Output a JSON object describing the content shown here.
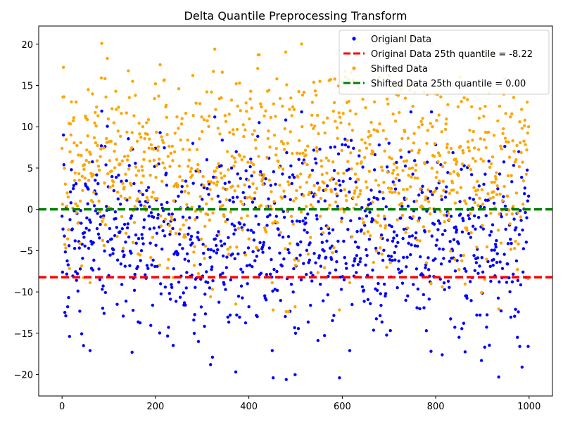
{
  "chart_data": {
    "type": "scatter",
    "title": "Delta Quantile Preprocessing Transform",
    "xlabel": "",
    "ylabel": "",
    "xlim": [
      -50,
      1050
    ],
    "ylim": [
      -22.6,
      22.2
    ],
    "x_ticks": [
      0,
      200,
      400,
      600,
      800,
      1000
    ],
    "y_ticks": [
      -20,
      -15,
      -10,
      -5,
      0,
      5,
      10,
      15,
      20
    ],
    "grid": false,
    "legend_position": "top-right",
    "n_points": 1000,
    "series": [
      {
        "name": "Origianl Data",
        "kind": "points",
        "color": "#0000ff",
        "marker": "dot",
        "sample_points": [
          [
            1,
            -7.6
          ],
          [
            3,
            9.0
          ],
          [
            4,
            5.4
          ],
          [
            8,
            -12.9
          ],
          [
            12,
            -11.8
          ],
          [
            15,
            -4.4
          ],
          [
            20,
            4.8
          ],
          [
            31,
            -8.6
          ],
          [
            36,
            -3.9
          ],
          [
            46,
            -16.5
          ],
          [
            60,
            -17.1
          ],
          [
            85,
            11.9
          ],
          [
            90,
            -12.6
          ],
          [
            118,
            -11.5
          ],
          [
            150,
            -17.3
          ],
          [
            200,
            7.4
          ],
          [
            242,
            1.0
          ],
          [
            292,
            -16.0
          ],
          [
            318,
            -18.8
          ],
          [
            322,
            -17.9
          ],
          [
            400,
            -11.8
          ],
          [
            422,
            10.5
          ],
          [
            450,
            -17.1
          ],
          [
            480,
            -20.6
          ],
          [
            500,
            -15.0
          ],
          [
            616,
            -17.1
          ],
          [
            700,
            8.0
          ],
          [
            755,
            5.9
          ],
          [
            780,
            -14.7
          ],
          [
            790,
            -17.2
          ],
          [
            860,
            -13.8
          ],
          [
            898,
            -18.3
          ],
          [
            905,
            -16.7
          ],
          [
            935,
            -20.3
          ],
          [
            940,
            -12.3
          ],
          [
            975,
            -15.5
          ],
          [
            980,
            -16.6
          ],
          [
            985,
            -19.1
          ],
          [
            998,
            -16.6
          ],
          [
            1000,
            1.6
          ]
        ]
      },
      {
        "name": "Original Data 25th quantile = -8.22",
        "kind": "hline",
        "y": -8.22,
        "color": "#ff0000",
        "style": "dashed"
      },
      {
        "name": "Shifted Data",
        "kind": "points",
        "color": "#ffa500",
        "marker": "dot",
        "sample_points": [
          [
            2,
            13.6
          ],
          [
            3,
            17.2
          ],
          [
            15,
            10.4
          ],
          [
            30,
            13.0
          ],
          [
            56,
            14.5
          ],
          [
            85,
            20.1
          ],
          [
            115,
            14.3
          ],
          [
            150,
            9.3
          ],
          [
            200,
            15.2
          ],
          [
            218,
            15.6
          ],
          [
            250,
            14.6
          ],
          [
            320,
            14.2
          ],
          [
            324,
            16.7
          ],
          [
            380,
            15.3
          ],
          [
            420,
            18.7
          ],
          [
            440,
            14.3
          ],
          [
            460,
            15.8
          ],
          [
            485,
            -12.4
          ],
          [
            535,
            11.4
          ],
          [
            572,
            15.6
          ],
          [
            600,
            15.4
          ],
          [
            650,
            12.3
          ],
          [
            720,
            13.8
          ],
          [
            745,
            14.4
          ],
          [
            775,
            14.2
          ],
          [
            800,
            14.0
          ],
          [
            852,
            16.0
          ],
          [
            895,
            12.2
          ],
          [
            915,
            18.2
          ],
          [
            950,
            11.6
          ],
          [
            960,
            11.2
          ],
          [
            980,
            10.6
          ],
          [
            985,
            9.8
          ],
          [
            1000,
            10.0
          ]
        ]
      },
      {
        "name": "Shifted Data 25th quantile = 0.00",
        "kind": "hline",
        "y": 0.0,
        "color": "#008000",
        "style": "dashed"
      }
    ]
  }
}
